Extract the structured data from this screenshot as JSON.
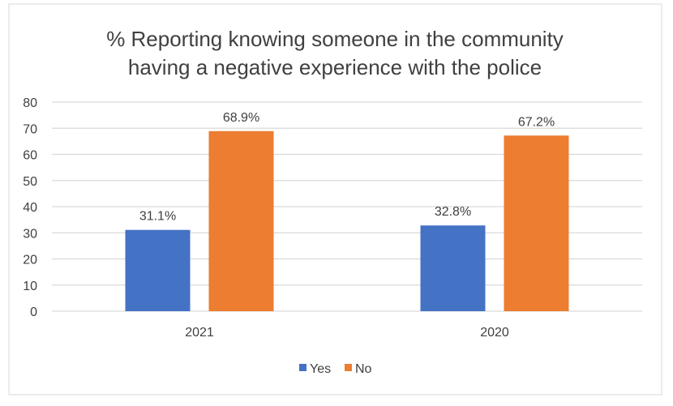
{
  "chart_data": {
    "type": "bar",
    "title": [
      "% Reporting knowing someone in the community",
      "having a negative experience with the police"
    ],
    "categories": [
      "2021",
      "2020"
    ],
    "series": [
      {
        "name": "Yes",
        "values": [
          31.1,
          32.8
        ],
        "labels": [
          "31.1%",
          "32.8%"
        ],
        "color": "#4472C4"
      },
      {
        "name": "No",
        "values": [
          68.9,
          67.2
        ],
        "labels": [
          "68.9%",
          "67.2%"
        ],
        "color": "#ED7D31"
      }
    ],
    "ylim": [
      0,
      80
    ],
    "yticks": [
      0,
      10,
      20,
      30,
      40,
      50,
      60,
      70,
      80
    ],
    "grid": true,
    "legend": "bottom"
  }
}
